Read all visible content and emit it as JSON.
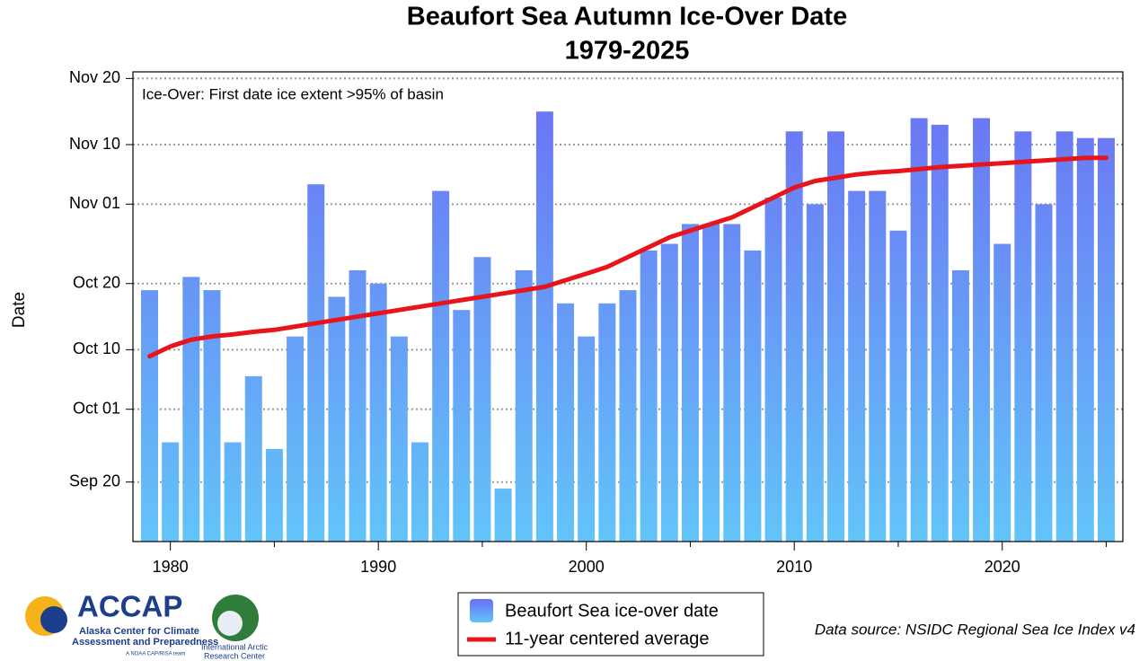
{
  "chart_data": {
    "type": "bar_line",
    "title": [
      "Beaufort Sea Autumn Ice-Over Date",
      "1979-2025"
    ],
    "ylabel": "Date",
    "annotation": "Ice-Over: First date ice extent >95% of basin",
    "source": "Data source: NSIDC Regional Sea Ice Index v4",
    "x": [
      1979,
      1980,
      1981,
      1982,
      1983,
      1984,
      1985,
      1986,
      1987,
      1988,
      1989,
      1990,
      1991,
      1992,
      1993,
      1994,
      1995,
      1996,
      1997,
      1998,
      1999,
      2000,
      2001,
      2002,
      2003,
      2004,
      2005,
      2006,
      2007,
      2008,
      2009,
      2010,
      2011,
      2012,
      2013,
      2014,
      2015,
      2016,
      2017,
      2018,
      2019,
      2020,
      2021,
      2022,
      2023,
      2024,
      2025
    ],
    "series": [
      {
        "name": "Beaufort Sea ice-over date",
        "kind": "bar",
        "color": [
          "#6c6ff4",
          "#62c4f9"
        ],
        "values": [
          292,
          269,
          294,
          292,
          269,
          279,
          268,
          285,
          308,
          291,
          295,
          293,
          285,
          269,
          307,
          289,
          297,
          262,
          295,
          319,
          290,
          285,
          290,
          292,
          298,
          299,
          302,
          302,
          302,
          298,
          306,
          316,
          305,
          316,
          307,
          307,
          301,
          318,
          317,
          295,
          318,
          299,
          316,
          305,
          316,
          315,
          315
        ]
      },
      {
        "name": "11-year centered average",
        "kind": "line",
        "color": "#e8141b",
        "values": [
          282,
          283.5,
          284.5,
          285,
          285.3,
          285.7,
          286,
          286.5,
          287,
          287.5,
          288,
          288.5,
          289,
          289.5,
          290,
          290.5,
          291,
          291.5,
          292,
          292.5,
          293.5,
          294.5,
          295.5,
          297,
          298.5,
          300,
          301,
          302,
          303,
          304.5,
          306,
          307.5,
          308.5,
          309,
          309.5,
          309.8,
          310,
          310.3,
          310.6,
          310.8,
          311,
          311.2,
          311.4,
          311.6,
          311.8,
          312,
          312
        ]
      }
    ],
    "xlim": [
      1978.2,
      2025.8
    ],
    "xticks": [
      1980,
      1990,
      2000,
      2010,
      2020
    ],
    "xticks_minor": [
      1985,
      1995,
      2005,
      2015,
      2025
    ],
    "ylim": [
      254,
      325
    ],
    "yticks": [
      {
        "value": 263,
        "label": "Sep 20"
      },
      {
        "value": 274,
        "label": "Oct 01"
      },
      {
        "value": 283,
        "label": "Oct 10"
      },
      {
        "value": 293,
        "label": "Oct 20"
      },
      {
        "value": 305,
        "label": "Nov 01"
      },
      {
        "value": 314,
        "label": "Nov 10"
      },
      {
        "value": 324,
        "label": "Nov 20"
      }
    ],
    "grid": true
  },
  "logos": {
    "accap": [
      "ACCAP",
      "Alaska Center for Climate",
      "Assessment and Preparedness",
      "A NOAA CAP/RISA team"
    ],
    "iarc": [
      "International Arctic",
      "Research Center"
    ]
  }
}
